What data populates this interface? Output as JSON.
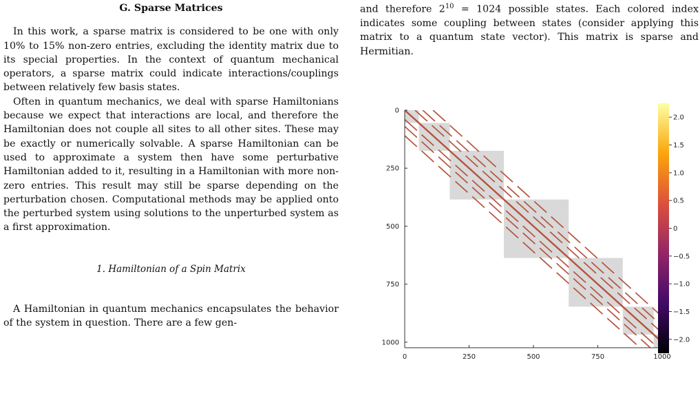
{
  "left_column": {
    "section_title": "G.   Sparse Matrices",
    "paragraph1": "In this work, a sparse matrix is considered to be one with only 10% to 15% non-zero entries, excluding the identity matrix due to its special properties. In the context of quantum mechanical operators, a sparse matrix could indicate interactions/couplings between relatively few basis states.",
    "paragraph2": "Often in quantum mechanics, we deal with sparse Hamiltonians because we expect that interactions are local, and therefore the Hamiltonian does not couple all sites to all other sites. These may be exactly or numerically solvable. A sparse Hamiltonian can be used to approximate a system then have some perturbative Hamiltonian added to it, resulting in a Hamiltonian with more non-zero entries. This result may still be sparse depending on the perturbation chosen. Computational methods may be applied onto the perturbed system using solutions to the unperturbed system as a first approximation.",
    "subsection_title": "1.   Hamiltonian of a Spin Matrix",
    "paragraph3": "A Hamiltonian in quantum mechanics encapsulates the behavior of the system in question. There are a few gen-"
  },
  "right_column": {
    "paragraph_start": "and therefore 2",
    "exponent": "10",
    "paragraph_rest": " = 1024 possible states. Each colored index indicates some coupling between states (consider applying this matrix to a quantum state vector). This matrix is sparse and Hermitian."
  },
  "chart_data": {
    "type": "heatmap",
    "xlim": [
      0,
      1024
    ],
    "ylim": [
      1024,
      0
    ],
    "x_ticks": [
      "0",
      "250",
      "500",
      "750",
      "1000"
    ],
    "y_ticks": [
      "0",
      "250",
      "500",
      "750",
      "1000"
    ],
    "colorbar": {
      "ticks": [
        "2.0",
        "1.5",
        "1.0",
        "0.5",
        "0",
        "−0.5",
        "−1.0",
        "−1.5",
        "−2.0"
      ],
      "range": [
        -2.25,
        2.25
      ],
      "colors": [
        "#000004",
        "#420a68",
        "#932667",
        "#dd513a",
        "#fca50a",
        "#fcffa4"
      ]
    },
    "blocks": [
      [
        0,
        55
      ],
      [
        55,
        175
      ],
      [
        175,
        385
      ],
      [
        385,
        637
      ],
      [
        637,
        847
      ],
      [
        847,
        967
      ],
      [
        967,
        1024
      ]
    ],
    "block_color": "#d9d9d9",
    "line_color": "#b5533e",
    "diagonal_lines": [
      [
        0,
        0,
        1024,
        1024
      ]
    ],
    "dashed_lines": [
      [
        40,
        0,
        1024,
        984
      ],
      [
        0,
        40,
        984,
        1024
      ],
      [
        70,
        0,
        1024,
        954
      ],
      [
        0,
        70,
        954,
        1024
      ],
      [
        110,
        0,
        1024,
        914
      ],
      [
        0,
        110,
        914,
        1024
      ]
    ]
  }
}
